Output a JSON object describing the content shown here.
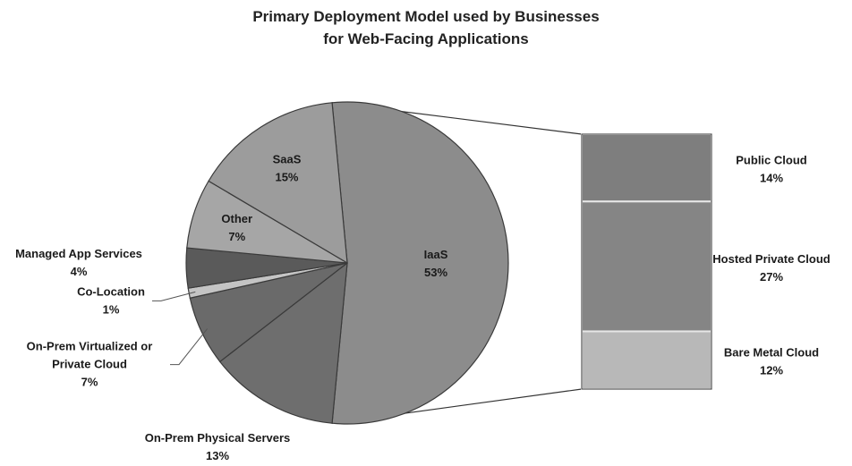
{
  "chart_data": {
    "type": "bar-of-pie",
    "title_lines": [
      "Primary Deployment Model used by Businesses",
      "for Web-Facing Applications"
    ],
    "pie": [
      {
        "label": "IaaS",
        "value": 53,
        "display": "53%",
        "color": "#8c8c8c"
      },
      {
        "label": "On-Prem Physical Servers",
        "value": 13,
        "display": "13%",
        "color": "#6e6e6e"
      },
      {
        "label": "On-Prem Virtualized or Private Cloud",
        "label_lines": [
          "On-Prem Virtualized or",
          "Private Cloud"
        ],
        "value": 7,
        "display": "7%",
        "color": "#6a6a6a"
      },
      {
        "label": "Co-Location",
        "value": 1,
        "display": "1%",
        "color": "#c4c4c4"
      },
      {
        "label": "Managed App Services",
        "value": 4,
        "display": "4%",
        "color": "#5a5a5a"
      },
      {
        "label": "Other",
        "value": 7,
        "display": "7%",
        "color": "#a6a6a6"
      },
      {
        "label": "SaaS",
        "value": 15,
        "display": "15%",
        "color": "#9c9c9c"
      }
    ],
    "breakdown_of": "IaaS",
    "bar": [
      {
        "label": "Public Cloud",
        "value": 14,
        "display": "14%",
        "color": "#7e7e7e"
      },
      {
        "label": "Hosted Private Cloud",
        "value": 27,
        "display": "27%",
        "color": "#858585"
      },
      {
        "label": "Bare Metal Cloud",
        "value": 12,
        "display": "12%",
        "color": "#b8b8b8"
      }
    ]
  }
}
